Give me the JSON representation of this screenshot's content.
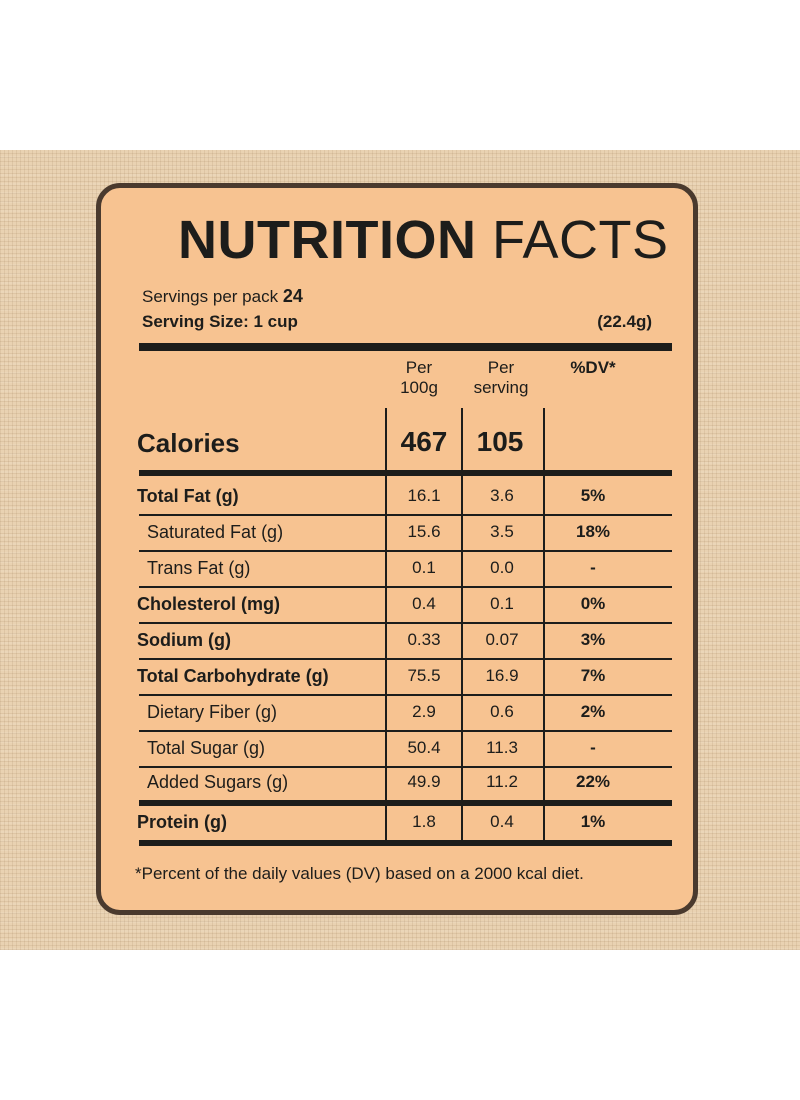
{
  "title": {
    "bold": "NUTRITION",
    "light": "FACTS"
  },
  "servings": {
    "label": "Servings per pack",
    "value": "24"
  },
  "serving_size": {
    "label": "Serving Size: 1 cup",
    "grams": "(22.4g)"
  },
  "columns": {
    "per100": [
      "Per",
      "100g"
    ],
    "perServing": [
      "Per",
      "serving"
    ],
    "dv": "%DV*"
  },
  "calories": {
    "label": "Calories",
    "per100": "467",
    "perServing": "105"
  },
  "rows": [
    {
      "label": "Total Fat (g)",
      "per100": "16.1",
      "perServing": "3.6",
      "dv": "5%"
    },
    {
      "label": "Saturated Fat (g)",
      "per100": "15.6",
      "perServing": "3.5",
      "dv": "18%"
    },
    {
      "label": "Trans Fat (g)",
      "per100": "0.1",
      "perServing": "0.0",
      "dv": "-"
    },
    {
      "label": "Cholesterol (mg)",
      "per100": "0.4",
      "perServing": "0.1",
      "dv": "0%"
    },
    {
      "label": "Sodium (g)",
      "per100": "0.33",
      "perServing": "0.07",
      "dv": "3%"
    },
    {
      "label": "Total Carbohydrate (g)",
      "per100": "75.5",
      "perServing": "16.9",
      "dv": "7%"
    },
    {
      "label": "Dietary Fiber (g)",
      "per100": "2.9",
      "perServing": "0.6",
      "dv": "2%"
    },
    {
      "label": "Total Sugar (g)",
      "per100": "50.4",
      "perServing": "11.3",
      "dv": "-"
    },
    {
      "label": "Added Sugars (g)",
      "per100": "49.9",
      "perServing": "11.2",
      "dv": "22%"
    },
    {
      "label": "Protein (g)",
      "per100": "1.8",
      "perServing": "0.4",
      "dv": "1%"
    }
  ],
  "footnote": "*Percent of the daily values (DV) based on a 2000 kcal diet.",
  "colors": {
    "panel": "#f7c391",
    "border": "#4a3a2e",
    "background": "#e9d2b2",
    "ink": "#1d1d1b"
  }
}
